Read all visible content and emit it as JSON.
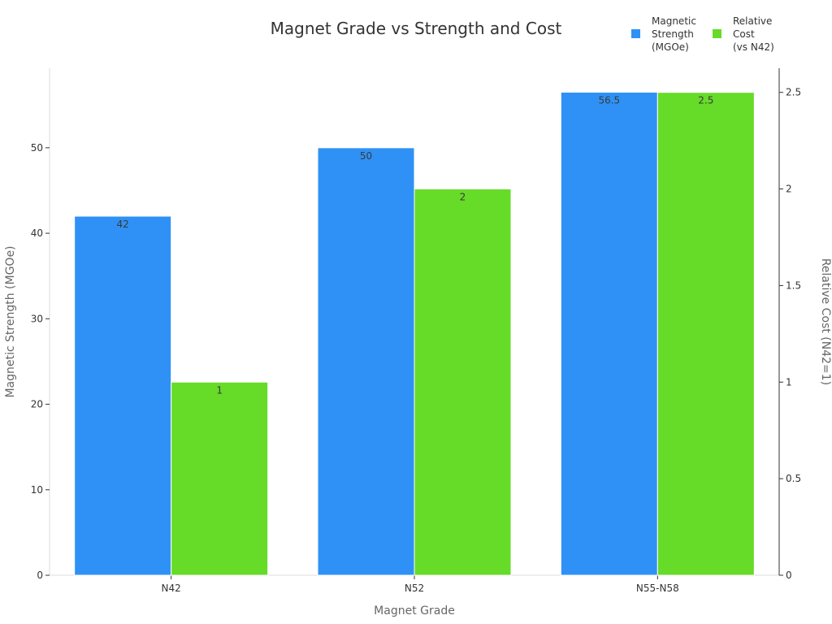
{
  "chart_data": {
    "type": "bar",
    "title": "Magnet Grade vs Strength and Cost",
    "xlabel": "Magnet Grade",
    "ylabel": "Magnetic Strength (MGOe)",
    "y2label": "Relative Cost (N42=1)",
    "categories": [
      "N42",
      "N52",
      "N55-N58"
    ],
    "series": [
      {
        "name": "Magnetic Strength (MGOe)",
        "name_lines": [
          "Magnetic",
          "Strength",
          "(MGOe)"
        ],
        "axis": "left",
        "color": "#2f91f5",
        "values": [
          42,
          50,
          56.5
        ],
        "labels": [
          "42",
          "50",
          "56.5"
        ]
      },
      {
        "name": "Relative Cost (vs N42)",
        "name_lines": [
          "Relative",
          "Cost",
          "(vs N42)"
        ],
        "axis": "right",
        "color": "#66db28",
        "values": [
          1,
          2,
          2.5
        ],
        "labels": [
          "1",
          "2",
          "2.5"
        ]
      }
    ],
    "y_ticks": [
      "0",
      "10",
      "20",
      "30",
      "40",
      "50"
    ],
    "y2_ticks": [
      "0",
      "0.5",
      "1",
      "1.5",
      "2",
      "2.5"
    ],
    "ylim": [
      0,
      59.3
    ],
    "y2lim": [
      0,
      2.625
    ],
    "grid": false,
    "legend_position": "top-right"
  }
}
